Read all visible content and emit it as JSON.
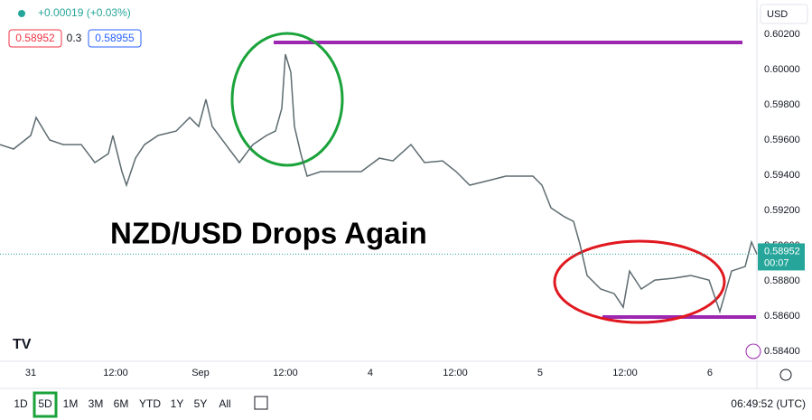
{
  "header": {
    "change": "+0.00019 (+0.03%)",
    "bid": "0.58952",
    "spread": "0.3",
    "ask": "0.58955",
    "currency": "USD"
  },
  "chart_data": {
    "type": "line",
    "title": "NZD/USD Drops Again",
    "color": "#5d6b70",
    "grid": false,
    "x": [
      -4.34,
      -2.43,
      0,
      0.77,
      2.68,
      4.6,
      7.15,
      9.06,
      10.98,
      11.62,
      12.89,
      13.53,
      14.81,
      16.09,
      18,
      20.55,
      22.47,
      23.74,
      24.77,
      25.66,
      27.57,
      29.49,
      31.4,
      33.32,
      34.6,
      35.49,
      36,
      36.77,
      37.28,
      38.17,
      39.06,
      40.98,
      43.53,
      46.72,
      49.28,
      51.19,
      53.74,
      55.66,
      58.21,
      60.13,
      62.04,
      64.6,
      67.15,
      69.06,
      70.98,
      72.26,
      73.53,
      75.45,
      76.72,
      77.62,
      78.64,
      80.55,
      82.47,
      83.74,
      84.64,
      86.3,
      88.21,
      90.77,
      93.32,
      95.87,
      97.4,
      99.06,
      100.98,
      101.87,
      102.64
    ],
    "values": [
      0.59574,
      0.59549,
      0.59626,
      0.59728,
      0.596,
      0.59574,
      0.59574,
      0.59472,
      0.59523,
      0.59626,
      0.59421,
      0.59344,
      0.59497,
      0.59574,
      0.59626,
      0.59651,
      0.59728,
      0.59677,
      0.59831,
      0.59677,
      0.59574,
      0.59472,
      0.59574,
      0.59626,
      0.59651,
      0.5978,
      0.60087,
      0.59985,
      0.59677,
      0.59523,
      0.59395,
      0.59421,
      0.59421,
      0.59421,
      0.59497,
      0.59482,
      0.59574,
      0.59472,
      0.59482,
      0.59421,
      0.59344,
      0.59369,
      0.59395,
      0.59395,
      0.59395,
      0.59344,
      0.59215,
      0.59164,
      0.59138,
      0.5901,
      0.58831,
      0.58754,
      0.58728,
      0.58651,
      0.58856,
      0.58754,
      0.58805,
      0.58815,
      0.58831,
      0.58805,
      0.58626,
      0.58856,
      0.58882,
      0.59021,
      0.58952
    ],
    "xlim": [
      -4.34,
      102.64
    ],
    "ylim": [
      0.58344,
      0.60395
    ],
    "xticks": [
      {
        "value": 0,
        "label": "31"
      },
      {
        "value": 12,
        "label": "12:00"
      },
      {
        "value": 24,
        "label": "Sep"
      },
      {
        "value": 36,
        "label": "12:00"
      },
      {
        "value": 48,
        "label": "4"
      },
      {
        "value": 60,
        "label": "12:00"
      },
      {
        "value": 72,
        "label": "5"
      },
      {
        "value": 84,
        "label": "12:00"
      },
      {
        "value": 96,
        "label": "6"
      }
    ],
    "yticks": [
      {
        "value": 0.602,
        "label": "0.60200"
      },
      {
        "value": 0.6,
        "label": "0.60000"
      },
      {
        "value": 0.598,
        "label": "0.59800"
      },
      {
        "value": 0.596,
        "label": "0.59600"
      },
      {
        "value": 0.594,
        "label": "0.59400"
      },
      {
        "value": 0.592,
        "label": "0.59200"
      },
      {
        "value": 0.59,
        "label": "0.59000"
      },
      {
        "value": 0.588,
        "label": "0.58800"
      },
      {
        "value": 0.586,
        "label": "0.58600"
      },
      {
        "value": 0.584,
        "label": "0.58400"
      }
    ],
    "last_price": {
      "value": 0.58952,
      "label": "0.58952",
      "countdown": "00:07",
      "color": "#26a69a"
    }
  },
  "toolbar": {
    "ranges": [
      "1D",
      "5D",
      "1M",
      "3M",
      "6M",
      "YTD",
      "1Y",
      "5Y",
      "All"
    ],
    "clock": "06:49:52 (UTC)"
  }
}
